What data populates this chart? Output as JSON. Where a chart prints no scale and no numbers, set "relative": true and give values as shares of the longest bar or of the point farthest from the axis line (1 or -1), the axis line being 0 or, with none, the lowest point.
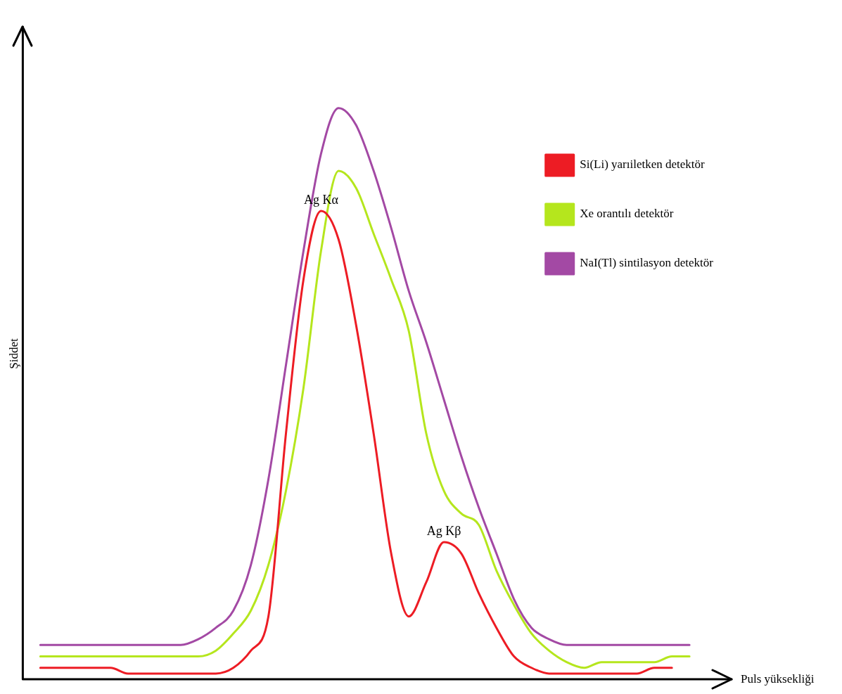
{
  "chart_data": {
    "type": "line",
    "relative": true,
    "xlabel": "Puls yüksekliği",
    "ylabel": "Şiddet",
    "legend": "top right",
    "categories": [
      null,
      null,
      null,
      null,
      null,
      null,
      null,
      null,
      null,
      null,
      null,
      null,
      null,
      null,
      null,
      null,
      null,
      null,
      null,
      null,
      null,
      null,
      null,
      null,
      null,
      null,
      null,
      null,
      null,
      null,
      null,
      null,
      null,
      null,
      null,
      null,
      null,
      null,
      null,
      null,
      null
    ],
    "series": [
      {
        "name": "Si(Li) yarıiletken detektör",
        "color": "#ed1c24",
        "values": [
          null,
          0.02,
          0.02,
          0.02,
          0.02,
          0.02,
          0.01,
          0.01,
          0.01,
          0.01,
          0.01,
          0.01,
          0.02,
          0.05,
          0.11,
          0.43,
          0.7,
          0.82,
          0.77,
          0.62,
          0.43,
          0.22,
          0.11,
          0.17,
          0.24,
          0.22,
          0.15,
          0.09,
          0.04,
          0.02,
          0.01,
          0.01,
          0.01,
          0.01,
          0.01,
          0.01,
          0.02,
          0.02,
          null,
          null,
          null
        ]
      },
      {
        "name": "Xe orantılı detektör",
        "color": "#b5e61d",
        "values": [
          null,
          0.04,
          0.04,
          0.04,
          0.04,
          0.04,
          0.04,
          0.04,
          0.04,
          0.04,
          0.04,
          0.05,
          0.08,
          0.12,
          0.2,
          0.33,
          0.51,
          0.75,
          0.89,
          0.86,
          0.78,
          0.7,
          0.61,
          0.43,
          0.33,
          0.29,
          0.27,
          0.19,
          0.13,
          0.08,
          0.05,
          0.03,
          0.02,
          0.03,
          0.03,
          0.03,
          0.03,
          0.04,
          0.04,
          null,
          null
        ]
      },
      {
        "name": "NaI(Tl) sintilasyon detektör",
        "color": "#a349a4",
        "values": [
          null,
          0.06,
          0.06,
          0.06,
          0.06,
          0.06,
          0.06,
          0.06,
          0.06,
          0.06,
          0.07,
          0.09,
          0.12,
          0.2,
          0.35,
          0.55,
          0.75,
          0.92,
          1.0,
          0.97,
          0.89,
          0.79,
          0.68,
          0.59,
          0.49,
          0.39,
          0.3,
          0.22,
          0.14,
          0.09,
          0.07,
          0.06,
          0.06,
          0.06,
          0.06,
          0.06,
          0.06,
          0.06,
          0.06,
          null,
          null
        ]
      }
    ],
    "annotations": [
      "Ag Kα",
      "Ag Kβ"
    ]
  }
}
